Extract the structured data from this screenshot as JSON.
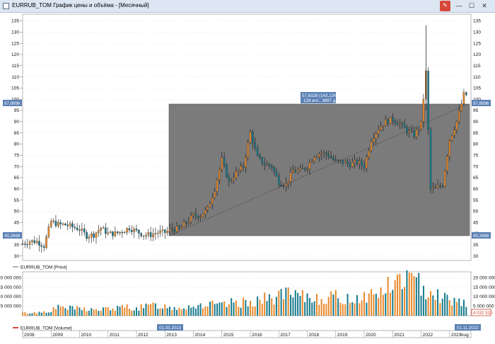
{
  "window": {
    "title": "EURRUB_TOM График цены и объёма - [Месячный]",
    "buttons": {
      "minimize": "—",
      "maximize": "☐",
      "close": "✕"
    }
  },
  "price_panel": {
    "legend": "EURRUB_TOM [Price]",
    "y_ticks": [
      "30",
      "35",
      "40",
      "45",
      "50",
      "55",
      "60",
      "65",
      "70",
      "75",
      "80",
      "85",
      "90",
      "95",
      "100",
      "105",
      "110",
      "115",
      "120",
      "125",
      "130",
      "135"
    ],
    "top_level": "97,8996",
    "bottom_level": "40,2668",
    "measure_label_1": "57,6328 (143,13%)",
    "measure_label_2": "128 инт., 3897 д.",
    "colors": {
      "up": "#e8892b",
      "down": "#167a8c",
      "selection": "#7b7b7b",
      "tag": "#5a80b5"
    }
  },
  "volume_panel": {
    "legend": "EURRUB_TOM [Volume]",
    "y_ticks": [
      "5 000 000",
      "10 000 000",
      "15 000 000",
      "20 000 000"
    ],
    "last_value": "4 032 510"
  },
  "time_axis": {
    "years": [
      "2008",
      "2009",
      "2010",
      "2011",
      "2012",
      "2013",
      "2014",
      "2015",
      "2016",
      "2017",
      "2018",
      "2019",
      "2020",
      "2021",
      "2022",
      "2023"
    ],
    "start_date": "01.03.2013",
    "end_date": "01.11.2022",
    "last_label": "Aug"
  },
  "chart_data": {
    "type": "candlestick",
    "instrument": "EURRUB_TOM",
    "timeframe": "Месячный",
    "ylim": [
      28,
      138
    ],
    "series": [
      {
        "name": "EURRUB_TOM [Price]",
        "points": [
          [
            "2008-01",
            35.5
          ],
          [
            "2008-04",
            36.5
          ],
          [
            "2008-07",
            36.5
          ],
          [
            "2008-10",
            34.5
          ],
          [
            "2009-01",
            45.5
          ],
          [
            "2009-04",
            44
          ],
          [
            "2009-07",
            44
          ],
          [
            "2009-10",
            43
          ],
          [
            "2010-01",
            42
          ],
          [
            "2010-04",
            39
          ],
          [
            "2010-07",
            39.5
          ],
          [
            "2010-10",
            42.5
          ],
          [
            "2011-01",
            40
          ],
          [
            "2011-04",
            40
          ],
          [
            "2011-07",
            41
          ],
          [
            "2011-10",
            42.5
          ],
          [
            "2012-01",
            41
          ],
          [
            "2012-04",
            39.5
          ],
          [
            "2012-07",
            39.5
          ],
          [
            "2012-10",
            40.5
          ],
          [
            "2013-01",
            40.5
          ],
          [
            "2013-04",
            42
          ],
          [
            "2013-07",
            42
          ],
          [
            "2013-10",
            45
          ],
          [
            "2014-01",
            48
          ],
          [
            "2014-04",
            48
          ],
          [
            "2014-07",
            51
          ],
          [
            "2014-10",
            60
          ],
          [
            "2015-01",
            73
          ],
          [
            "2015-04",
            63
          ],
          [
            "2015-07",
            67
          ],
          [
            "2015-10",
            70
          ],
          [
            "2016-01",
            85
          ],
          [
            "2016-04",
            74
          ],
          [
            "2016-07",
            71
          ],
          [
            "2016-10",
            70
          ],
          [
            "2017-01",
            63
          ],
          [
            "2017-04",
            62
          ],
          [
            "2017-07",
            68
          ],
          [
            "2017-10",
            68
          ],
          [
            "2018-01",
            70
          ],
          [
            "2018-04",
            75
          ],
          [
            "2018-07",
            76
          ],
          [
            "2018-10",
            75
          ],
          [
            "2019-01",
            72
          ],
          [
            "2019-04",
            72
          ],
          [
            "2019-07",
            71
          ],
          [
            "2019-10",
            72
          ],
          [
            "2020-01",
            70
          ],
          [
            "2020-04",
            82
          ],
          [
            "2020-07",
            87
          ],
          [
            "2020-10",
            90
          ],
          [
            "2021-01",
            91
          ],
          [
            "2021-04",
            89
          ],
          [
            "2021-07",
            86
          ],
          [
            "2021-10",
            84
          ],
          [
            "2022-01",
            89
          ],
          [
            "2022-03",
            112
          ],
          [
            "2022-05",
            60
          ],
          [
            "2022-07",
            60
          ],
          [
            "2022-10",
            62
          ],
          [
            "2023-01",
            82
          ],
          [
            "2023-04",
            90
          ],
          [
            "2023-07",
            102
          ]
        ]
      },
      {
        "name": "EURRUB_TOM [Volume]",
        "values_millions": [
          1.5,
          1.5,
          2,
          3,
          5,
          4,
          4,
          3.5,
          3,
          4,
          4,
          5,
          4,
          5,
          6,
          5,
          4.5,
          5,
          5.5,
          6,
          6,
          5.5,
          7,
          7,
          8,
          9,
          9,
          12,
          11,
          10,
          10,
          10,
          10,
          10,
          9,
          10,
          11,
          12,
          15,
          17,
          22,
          18,
          16,
          14,
          10,
          9,
          8,
          7
        ]
      }
    ]
  }
}
